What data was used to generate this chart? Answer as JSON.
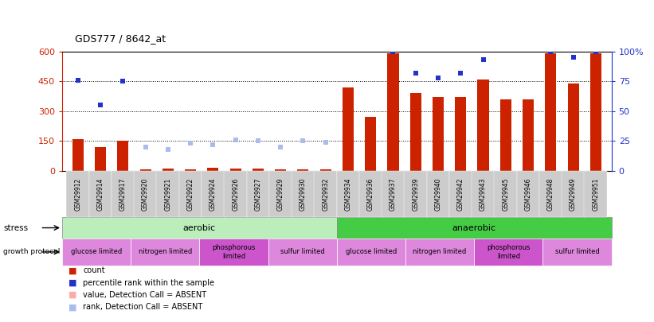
{
  "title": "GDS777 / 8642_at",
  "samples": [
    "GSM29912",
    "GSM29914",
    "GSM29917",
    "GSM29920",
    "GSM29921",
    "GSM29922",
    "GSM29924",
    "GSM29926",
    "GSM29927",
    "GSM29929",
    "GSM29930",
    "GSM29932",
    "GSM29934",
    "GSM29936",
    "GSM29937",
    "GSM29939",
    "GSM29940",
    "GSM29942",
    "GSM29943",
    "GSM29945",
    "GSM29946",
    "GSM29948",
    "GSM29949",
    "GSM29951"
  ],
  "count": [
    160,
    120,
    150,
    8,
    10,
    8,
    15,
    10,
    10,
    8,
    8,
    8,
    420,
    270,
    590,
    390,
    370,
    370,
    460,
    360,
    360,
    590,
    440,
    590
  ],
  "percentile_rank_pct": [
    76,
    55,
    75,
    null,
    null,
    null,
    null,
    null,
    null,
    null,
    null,
    null,
    null,
    null,
    100,
    82,
    78,
    82,
    93,
    null,
    null,
    100,
    95,
    100
  ],
  "absent_rank_pct": [
    null,
    null,
    null,
    20,
    18,
    23,
    22,
    26,
    25,
    20,
    25,
    24,
    null,
    null,
    null,
    null,
    null,
    null,
    null,
    null,
    null,
    null,
    null,
    null
  ],
  "ylim_left": [
    0,
    600
  ],
  "yticks_left": [
    0,
    150,
    300,
    450,
    600
  ],
  "yticks_right": [
    0,
    25,
    50,
    75,
    100
  ],
  "bar_color": "#cc2200",
  "pct_color": "#2233cc",
  "absent_rank_color": "#aabbee",
  "absent_val_color": "#ffaaaa",
  "bar_width": 0.5,
  "stress_aerobic_color": "#bbeebb",
  "stress_anaerobic_color": "#44cc44",
  "growth_colors": [
    "#dd88dd",
    "#dd88dd",
    "#cc55cc",
    "#dd88dd",
    "#dd88dd",
    "#dd88dd",
    "#cc55cc",
    "#dd88dd"
  ],
  "growth_labels": [
    "glucose limited",
    "nitrogen limited",
    "phosphorous\nlimited",
    "sulfur limited",
    "glucose limited",
    "nitrogen limited",
    "phosphorous\nlimited",
    "sulfur limited"
  ],
  "growth_starts": [
    0,
    3,
    6,
    9,
    12,
    15,
    18,
    21
  ],
  "growth_ends": [
    3,
    6,
    9,
    12,
    15,
    18,
    21,
    24
  ]
}
